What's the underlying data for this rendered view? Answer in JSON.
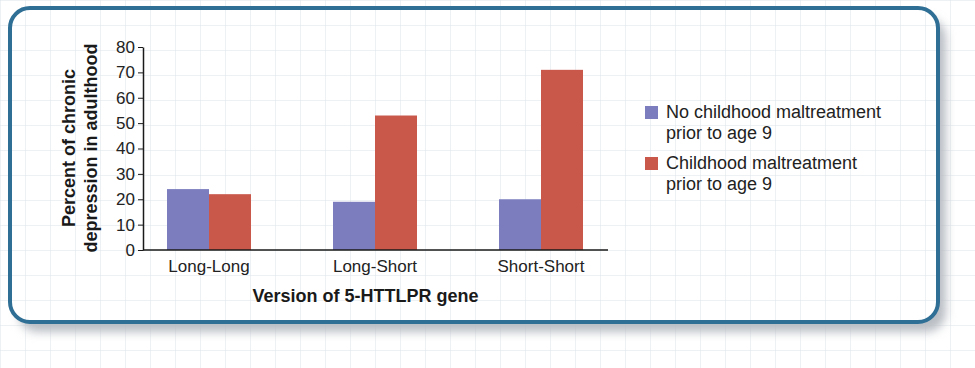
{
  "chart_data": {
    "type": "bar",
    "x_label": "Version of 5-HTTLPR gene",
    "y_label": "Percent of chronic depression in adulthood",
    "categories": [
      "Long-Long",
      "Long-Short",
      "Short-Short"
    ],
    "series": [
      {
        "name": "No childhood maltreatment prior to age 9",
        "color": "#7b7dbf",
        "values": [
          24,
          19,
          20
        ]
      },
      {
        "name": "Childhood maltreatment prior to age 9",
        "color": "#c9574a",
        "values": [
          22,
          53,
          71
        ]
      }
    ],
    "ylim": [
      0,
      80
    ],
    "yticks": [
      0,
      10,
      20,
      30,
      40,
      50,
      60,
      70,
      80
    ],
    "legend": "right",
    "grid": false
  }
}
